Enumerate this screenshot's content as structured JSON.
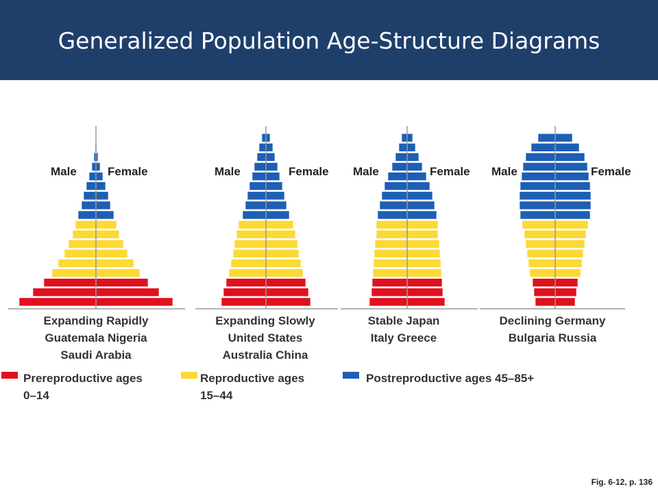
{
  "slide": {
    "title": "Generalized Population Age-Structure Diagrams",
    "source": "Fig. 6-12, p. 136"
  },
  "colors": {
    "header_bg": "#1f3f6b",
    "prereproductive": "#e0101e",
    "reproductive": "#fcd935",
    "postreproductive": "#1d5fb5"
  },
  "legend": [
    {
      "line1": "Prereproductive ages",
      "line2": "0–14",
      "color_key": "prereproductive"
    },
    {
      "line1": "Reproductive ages",
      "line2": "15–44",
      "color_key": "reproductive"
    },
    {
      "line1": "Postreproductive ages 45–85+",
      "line2": "",
      "color_key": "postreproductive"
    }
  ],
  "pyramids": [
    {
      "male_label": "Male",
      "female_label": "Female",
      "caption": [
        "Expanding Rapidly",
        "Guatemala Nigeria",
        "Saudi Arabia"
      ],
      "bars": [
        {
          "g": "post",
          "w": 0.5
        },
        {
          "g": "post",
          "w": 1
        },
        {
          "g": "post",
          "w": 3
        },
        {
          "g": "post",
          "w": 6
        },
        {
          "g": "post",
          "w": 10
        },
        {
          "g": "post",
          "w": 14
        },
        {
          "g": "post",
          "w": 18
        },
        {
          "g": "post",
          "w": 21
        },
        {
          "g": "post",
          "w": 26
        },
        {
          "g": "repro",
          "w": 30
        },
        {
          "g": "repro",
          "w": 34
        },
        {
          "g": "repro",
          "w": 40
        },
        {
          "g": "repro",
          "w": 46
        },
        {
          "g": "repro",
          "w": 55
        },
        {
          "g": "repro",
          "w": 64
        },
        {
          "g": "pre",
          "w": 76
        },
        {
          "g": "pre",
          "w": 92
        },
        {
          "g": "pre",
          "w": 112
        }
      ]
    },
    {
      "male_label": "Male",
      "female_label": "Female",
      "caption": [
        "Expanding Slowly",
        "United States",
        "Australia China"
      ],
      "bars": [
        {
          "g": "post",
          "w": 6
        },
        {
          "g": "post",
          "w": 10
        },
        {
          "g": "post",
          "w": 13
        },
        {
          "g": "post",
          "w": 17
        },
        {
          "g": "post",
          "w": 20
        },
        {
          "g": "post",
          "w": 24
        },
        {
          "g": "post",
          "w": 27
        },
        {
          "g": "post",
          "w": 30
        },
        {
          "g": "post",
          "w": 34
        },
        {
          "g": "repro",
          "w": 40
        },
        {
          "g": "repro",
          "w": 43
        },
        {
          "g": "repro",
          "w": 46
        },
        {
          "g": "repro",
          "w": 48
        },
        {
          "g": "repro",
          "w": 51
        },
        {
          "g": "repro",
          "w": 54
        },
        {
          "g": "pre",
          "w": 58
        },
        {
          "g": "pre",
          "w": 62
        },
        {
          "g": "pre",
          "w": 65
        }
      ]
    },
    {
      "male_label": "Male",
      "female_label": "Female",
      "caption": [
        "Stable Japan",
        "Italy Greece"
      ],
      "bars": [
        {
          "g": "post",
          "w": 8
        },
        {
          "g": "post",
          "w": 12
        },
        {
          "g": "post",
          "w": 17
        },
        {
          "g": "post",
          "w": 22
        },
        {
          "g": "post",
          "w": 28
        },
        {
          "g": "post",
          "w": 33
        },
        {
          "g": "post",
          "w": 37
        },
        {
          "g": "post",
          "w": 40
        },
        {
          "g": "post",
          "w": 43
        },
        {
          "g": "repro",
          "w": 45
        },
        {
          "g": "repro",
          "w": 45
        },
        {
          "g": "repro",
          "w": 47
        },
        {
          "g": "repro",
          "w": 48
        },
        {
          "g": "repro",
          "w": 49
        },
        {
          "g": "repro",
          "w": 50
        },
        {
          "g": "pre",
          "w": 51
        },
        {
          "g": "pre",
          "w": 52
        },
        {
          "g": "pre",
          "w": 55
        }
      ]
    },
    {
      "male_label": "Male",
      "female_label": "Female",
      "caption": [
        "Declining Germany",
        "Bulgaria Russia"
      ],
      "bars": [
        {
          "g": "post",
          "w": 25
        },
        {
          "g": "post",
          "w": 35
        },
        {
          "g": "post",
          "w": 43
        },
        {
          "g": "post",
          "w": 47
        },
        {
          "g": "post",
          "w": 49
        },
        {
          "g": "post",
          "w": 51
        },
        {
          "g": "post",
          "w": 52
        },
        {
          "g": "post",
          "w": 52
        },
        {
          "g": "post",
          "w": 51
        },
        {
          "g": "repro",
          "w": 48
        },
        {
          "g": "repro",
          "w": 45
        },
        {
          "g": "repro",
          "w": 43
        },
        {
          "g": "repro",
          "w": 41
        },
        {
          "g": "repro",
          "w": 39
        },
        {
          "g": "repro",
          "w": 37
        },
        {
          "g": "pre",
          "w": 33
        },
        {
          "g": "pre",
          "w": 31
        },
        {
          "g": "pre",
          "w": 29
        }
      ]
    }
  ]
}
